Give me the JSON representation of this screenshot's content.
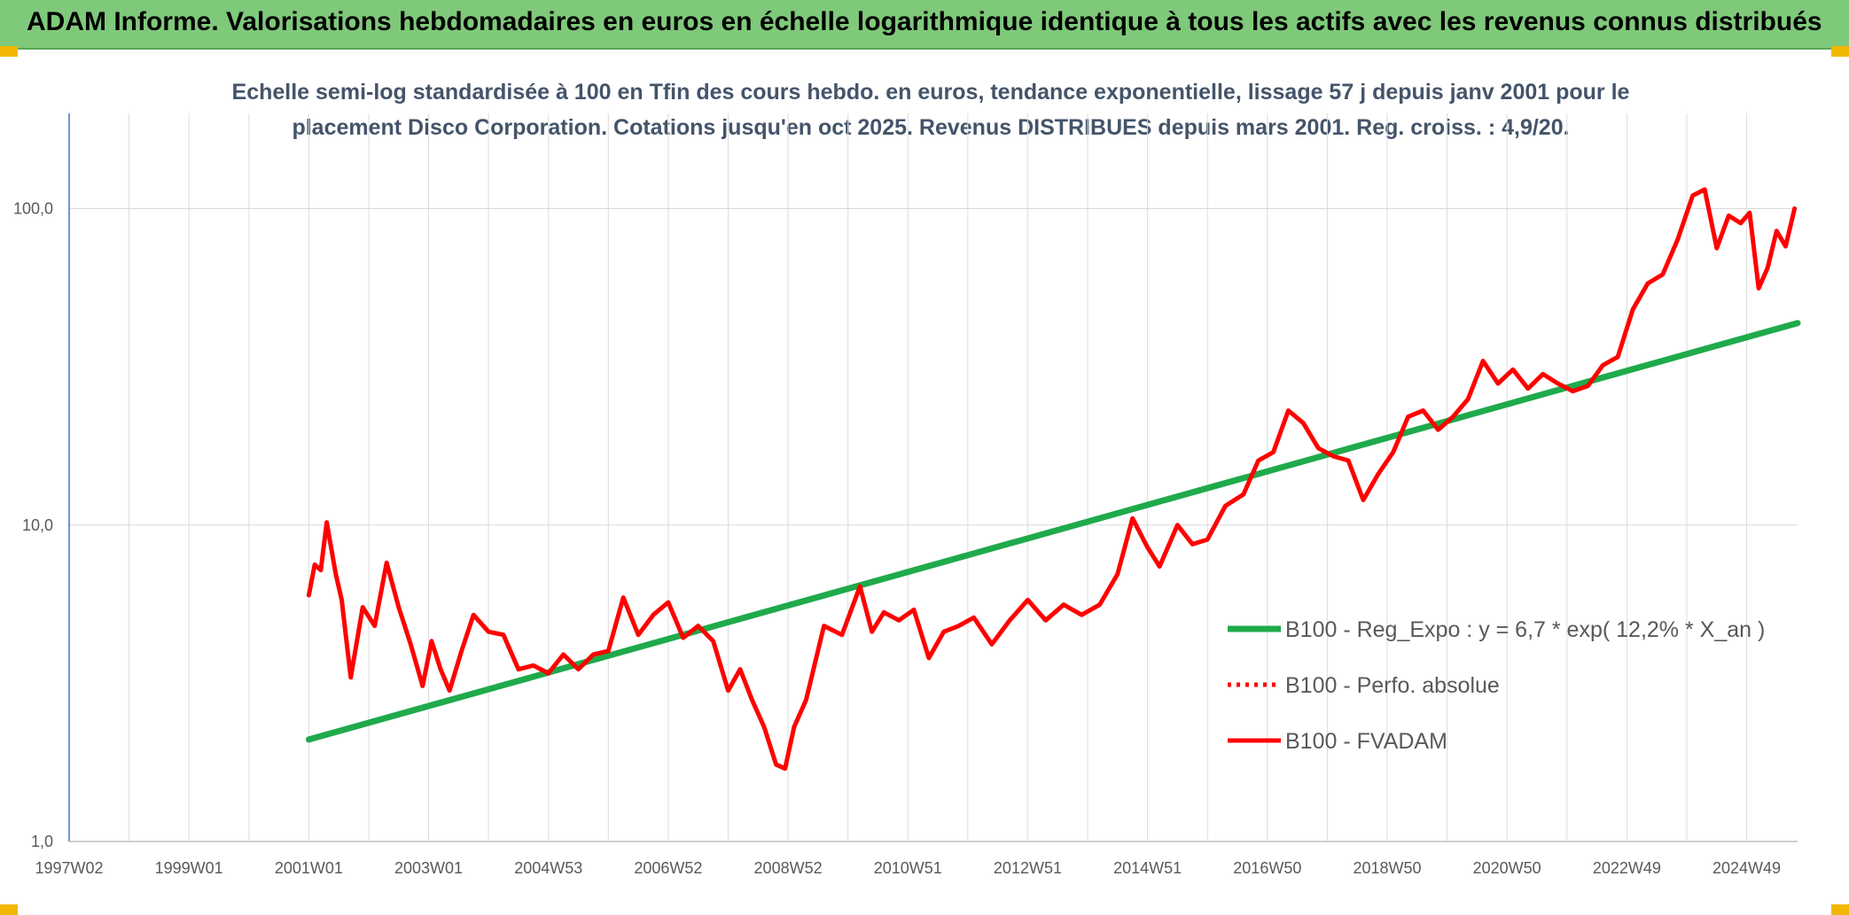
{
  "banner": {
    "title": "ADAM Informe. Valorisations hebdomadaires en euros en échelle logarithmique identique à tous les actifs avec les revenus connus distribués",
    "background": "#7fc97a",
    "corner_color": "#f2b705"
  },
  "chart_data": {
    "type": "line",
    "title_line1": "Echelle semi-log standardisée à 100 en Tfin des cours hebdo. en euros, tendance exponentielle, lissage 57 j depuis janv 2001 pour le",
    "title_line2": "placement Disco Corporation. Cotations jusqu'en oct 2025. Revenus DISTRIBUES depuis mars 2001. Reg. croiss. : 4,9/20.",
    "y_scale": "log",
    "ylim": [
      1,
      200
    ],
    "y_ticks": [
      {
        "value": 1,
        "label": "1,0"
      },
      {
        "value": 10,
        "label": "10,0"
      },
      {
        "value": 100,
        "label": "100,0"
      }
    ],
    "xlim": [
      1997.0,
      2025.85
    ],
    "x_ticks": [
      {
        "value": 1997.0,
        "label": "1997W02"
      },
      {
        "value": 1999.0,
        "label": "1999W01"
      },
      {
        "value": 2001.0,
        "label": "2001W01"
      },
      {
        "value": 2003.0,
        "label": "2003W01"
      },
      {
        "value": 2005.0,
        "label": "2004W53"
      },
      {
        "value": 2007.0,
        "label": "2006W52"
      },
      {
        "value": 2009.0,
        "label": "2008W52"
      },
      {
        "value": 2011.0,
        "label": "2010W51"
      },
      {
        "value": 2013.0,
        "label": "2012W51"
      },
      {
        "value": 2015.0,
        "label": "2014W51"
      },
      {
        "value": 2017.0,
        "label": "2016W50"
      },
      {
        "value": 2019.0,
        "label": "2018W50"
      },
      {
        "value": 2021.0,
        "label": "2020W50"
      },
      {
        "value": 2023.0,
        "label": "2022W49"
      },
      {
        "value": 2025.0,
        "label": "2024W49"
      }
    ],
    "grid": true,
    "legend_position": "right",
    "series": [
      {
        "name": "B100 - Reg_Expo : y = 6,7 * exp( 12,2% *  X_an )",
        "color": "#1faa4b",
        "style": "solid",
        "x": [
          2001.0,
          2025.85
        ],
        "y": [
          2.1,
          43.5
        ]
      },
      {
        "name": "B100 - Perfo. absolue",
        "color": "#ff0000",
        "style": "dotted",
        "x": [],
        "y": []
      },
      {
        "name": "B100 - FVADAM",
        "color": "#ff0000",
        "style": "solid",
        "x": [
          2001.0,
          2001.1,
          2001.2,
          2001.3,
          2001.45,
          2001.55,
          2001.7,
          2001.9,
          2002.1,
          2002.3,
          2002.5,
          2002.7,
          2002.9,
          2003.05,
          2003.2,
          2003.35,
          2003.55,
          2003.75,
          2004.0,
          2004.25,
          2004.5,
          2004.75,
          2005.0,
          2005.25,
          2005.5,
          2005.75,
          2006.0,
          2006.25,
          2006.5,
          2006.75,
          2007.0,
          2007.25,
          2007.5,
          2007.75,
          2008.0,
          2008.2,
          2008.4,
          2008.6,
          2008.8,
          2008.95,
          2009.1,
          2009.3,
          2009.6,
          2009.9,
          2010.2,
          2010.4,
          2010.6,
          2010.85,
          2011.1,
          2011.35,
          2011.6,
          2011.85,
          2012.1,
          2012.4,
          2012.7,
          2013.0,
          2013.3,
          2013.6,
          2013.9,
          2014.2,
          2014.5,
          2014.75,
          2015.0,
          2015.2,
          2015.5,
          2015.75,
          2016.0,
          2016.3,
          2016.6,
          2016.85,
          2017.1,
          2017.35,
          2017.6,
          2017.85,
          2018.1,
          2018.35,
          2018.6,
          2018.85,
          2019.1,
          2019.35,
          2019.6,
          2019.85,
          2020.1,
          2020.35,
          2020.6,
          2020.85,
          2021.1,
          2021.35,
          2021.6,
          2021.85,
          2022.1,
          2022.35,
          2022.6,
          2022.85,
          2023.1,
          2023.35,
          2023.6,
          2023.85,
          2024.1,
          2024.3,
          2024.5,
          2024.7,
          2024.9,
          2025.05,
          2025.2,
          2025.35,
          2025.5,
          2025.65,
          2025.8
        ],
        "y": [
          6.0,
          7.5,
          7.2,
          10.2,
          7.0,
          5.8,
          3.3,
          5.5,
          4.8,
          7.6,
          5.5,
          4.2,
          3.1,
          4.3,
          3.5,
          3.0,
          4.0,
          5.2,
          4.6,
          4.5,
          3.5,
          3.6,
          3.4,
          3.9,
          3.5,
          3.9,
          4.0,
          5.9,
          4.5,
          5.2,
          5.7,
          4.4,
          4.8,
          4.3,
          3.0,
          3.5,
          2.8,
          2.3,
          1.75,
          1.7,
          2.3,
          2.8,
          4.8,
          4.5,
          6.4,
          4.6,
          5.3,
          5.0,
          5.4,
          3.8,
          4.6,
          4.8,
          5.1,
          4.2,
          5.0,
          5.8,
          5.0,
          5.6,
          5.2,
          5.6,
          7.0,
          10.5,
          8.5,
          7.4,
          10.0,
          8.7,
          9.0,
          11.5,
          12.5,
          16.0,
          17.0,
          23.0,
          21.0,
          17.5,
          16.5,
          16.0,
          12.0,
          14.5,
          17.0,
          22.0,
          23.0,
          20.0,
          22.0,
          25.0,
          33.0,
          28.0,
          31.0,
          27.0,
          30.0,
          28.0,
          26.5,
          27.5,
          32.0,
          34.0,
          48.0,
          58.0,
          62.0,
          80.0,
          110.0,
          115.0,
          75.0,
          95.0,
          90.0,
          97.0,
          56.0,
          65.0,
          85.0,
          76.0,
          100.0
        ]
      }
    ]
  }
}
